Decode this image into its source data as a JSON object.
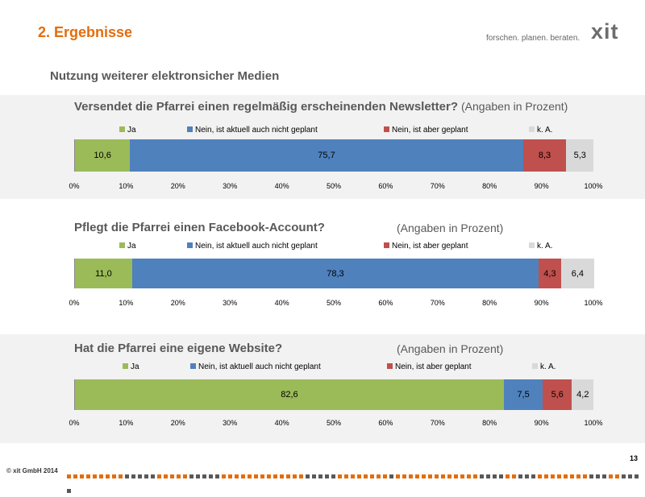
{
  "header": {
    "title": "2. Ergebnisse",
    "tagline": "forschen. planen. beraten.",
    "logo": "xit",
    "subtitle": "Nutzung weiterer elektronsicher Medien"
  },
  "footer": {
    "copyright": "© xit GmbH 2014",
    "page": "13"
  },
  "colors": {
    "Ja": "#9bbb59",
    "Nein, ist aktuell auch nicht geplant": "#4f81bd",
    "Nein, ist aber geplant": "#c0504d",
    "k. A.": "#d9d9d9",
    "accent": "#e46c0a"
  },
  "chart_data": [
    {
      "type": "bar",
      "orientation": "horizontal-stacked",
      "title": "Versendet die Pfarrei einen regelmäßig erscheinenden Newsletter?",
      "unit": "(Angaben in Prozent)",
      "legend": [
        "Ja",
        "Nein, ist aktuell auch nicht geplant",
        "Nein, ist aber geplant",
        "k. A."
      ],
      "values": [
        10.6,
        75.7,
        8.3,
        5.3
      ],
      "labels": [
        "10,6",
        "75,7",
        "8,3",
        "5,3"
      ],
      "ticks": [
        "0%",
        "10%",
        "20%",
        "30%",
        "40%",
        "50%",
        "60%",
        "70%",
        "80%",
        "90%",
        "100%"
      ],
      "xlim": [
        0,
        100
      ],
      "legend_position": "top"
    },
    {
      "type": "bar",
      "orientation": "horizontal-stacked",
      "title": "Pflegt die Pfarrei einen Facebook-Account?",
      "unit": "(Angaben in Prozent)",
      "legend": [
        "Ja",
        "Nein, ist aktuell auch nicht geplant",
        "Nein, ist aber geplant",
        "k. A."
      ],
      "values": [
        11.0,
        78.3,
        4.3,
        6.4
      ],
      "labels": [
        "11,0",
        "78,3",
        "4,3",
        "6,4"
      ],
      "ticks": [
        "0%",
        "10%",
        "20%",
        "30%",
        "40%",
        "50%",
        "60%",
        "70%",
        "80%",
        "90%",
        "100%"
      ],
      "xlim": [
        0,
        100
      ],
      "legend_position": "top"
    },
    {
      "type": "bar",
      "orientation": "horizontal-stacked",
      "title": "Hat die Pfarrei eine eigene Website?",
      "unit": "(Angaben in Prozent)",
      "legend": [
        "Ja",
        "Nein, ist aktuell auch nicht geplant",
        "Nein, ist aber geplant",
        "k. A."
      ],
      "values": [
        82.6,
        7.5,
        5.6,
        4.2
      ],
      "labels": [
        "82,6",
        "7,5",
        "5,6",
        "4,2"
      ],
      "ticks": [
        "0%",
        "10%",
        "20%",
        "30%",
        "40%",
        "50%",
        "60%",
        "70%",
        "80%",
        "90%",
        "100%"
      ],
      "xlim": [
        0,
        100
      ],
      "legend_position": "top"
    }
  ]
}
